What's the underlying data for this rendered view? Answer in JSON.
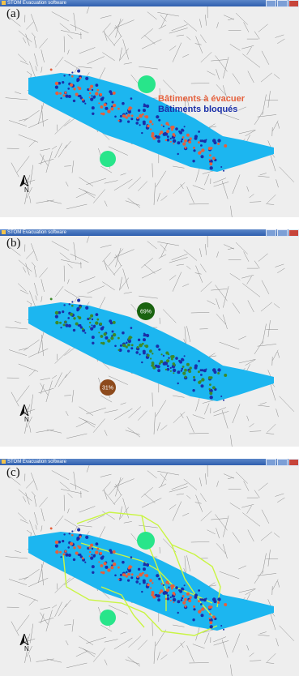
{
  "window": {
    "title": "STOM Evacuation software"
  },
  "panels": [
    {
      "label": "(a)"
    },
    {
      "label": "(b)"
    },
    {
      "label": "(c)"
    }
  ],
  "legend": {
    "evacuate": "Bâtiments à évacuer",
    "blocked": "Bâtiments bloqués"
  },
  "shelters_b": {
    "north_pct": "69%",
    "south_pct": "31%"
  },
  "north_arrow": "N",
  "colors": {
    "river": "#1cb6f0",
    "road": "#8a8a8a",
    "shelter": "#28e58a",
    "shelter_north_b": "#1a6310",
    "shelter_south_b": "#8d4a1c",
    "evacuate": "#e5603c",
    "blocked": "#1b2fa8",
    "route": "#c9f542"
  }
}
